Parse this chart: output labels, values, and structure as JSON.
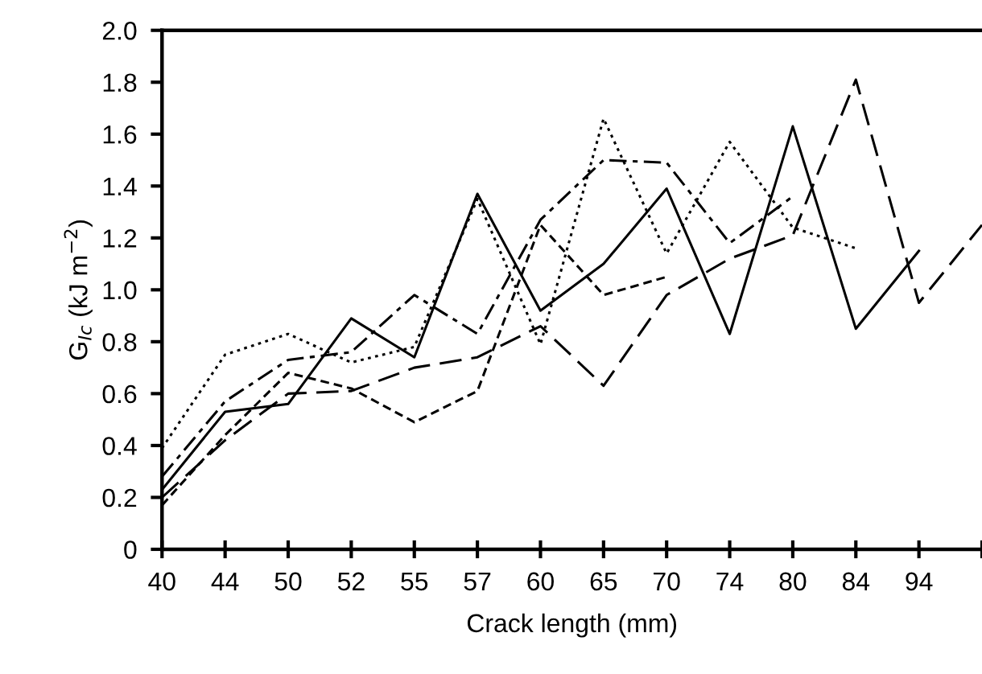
{
  "chart_data": {
    "type": "line",
    "xlabel": "Crack length (mm)",
    "ylabel": "G$_{Ic}$ (kJ m$^{−2}$)",
    "categories": [
      "40",
      "44",
      "50",
      "52",
      "55",
      "57",
      "60",
      "65",
      "70",
      "74",
      "80",
      "84",
      "94",
      null
    ],
    "ylim": [
      0,
      2.0
    ],
    "yticks": [
      0,
      0.2,
      0.4,
      0.6,
      0.8,
      {
        "value": 1,
        "label": "1.0"
      },
      1.2,
      1.4,
      1.6,
      1.8,
      {
        "value": 2,
        "label": "2.0"
      }
    ],
    "grid": false,
    "marker": "none",
    "series": [
      {
        "color": "#000000",
        "line_style": "solid",
        "values": [
          0.23,
          0.53,
          0.56,
          0.89,
          0.74,
          1.37,
          0.92,
          1.1,
          1.39,
          0.83,
          1.63,
          0.85,
          1.15,
          null
        ]
      },
      {
        "color": "#000000",
        "line_style": "dotted",
        "values": [
          0.39,
          0.75,
          0.83,
          0.72,
          0.78,
          1.35,
          0.79,
          1.66,
          1.14,
          1.57,
          1.24,
          1.16,
          null,
          null
        ]
      },
      {
        "color": "#000000",
        "line_style": "dashdot",
        "values": [
          0.28,
          0.57,
          0.73,
          0.76,
          0.98,
          0.83,
          1.27,
          1.5,
          1.49,
          1.18,
          1.36,
          null,
          null,
          null
        ]
      },
      {
        "color": "#000000",
        "line_style": "dashed",
        "values": [
          0.17,
          0.44,
          0.68,
          0.62,
          0.49,
          0.61,
          1.25,
          0.98,
          1.05,
          null,
          null,
          null,
          null,
          null
        ]
      },
      {
        "color": "#000000",
        "line_style": "longdash",
        "values": [
          0.2,
          0.42,
          0.6,
          0.61,
          0.7,
          0.74,
          0.86,
          0.63,
          0.98,
          1.12,
          1.21,
          1.81,
          0.95,
          1.25
        ]
      }
    ]
  }
}
